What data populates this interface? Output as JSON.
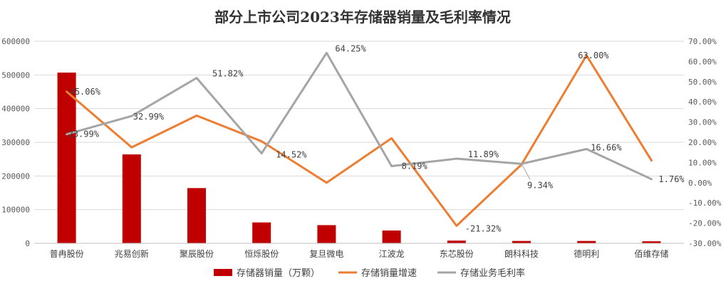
{
  "chart_data": {
    "type": "bar",
    "title": "部分上市公司2023年存储器销量及毛利率情况",
    "categories": [
      "普冉股份",
      "兆易创新",
      "聚辰股份",
      "恒烁股份",
      "复旦微电",
      "江波龙",
      "东芯股份",
      "朗科科技",
      "德明利",
      "佰维存储"
    ],
    "y_left": {
      "ticks": [
        "0",
        "100000",
        "200000",
        "300000",
        "400000",
        "500000",
        "600000"
      ],
      "ylim": [
        0,
        600000
      ]
    },
    "y_right": {
      "ticks": [
        "-30.00%",
        "-20.00%",
        "-10.00%",
        "0.00%",
        "10.00%",
        "20.00%",
        "30.00%",
        "40.00%",
        "50.00%",
        "60.00%",
        "70.00%"
      ],
      "ylim": [
        -30,
        70
      ]
    },
    "grid": true,
    "legend_position": "bottom",
    "series": [
      {
        "name": "存储器销量（万颗）",
        "type": "bar",
        "axis": "left",
        "color": "#c00000",
        "values": [
          507000,
          264000,
          164000,
          62000,
          54000,
          38000,
          8000,
          7000,
          7000,
          6000
        ]
      },
      {
        "name": "存储销量增速",
        "type": "line",
        "axis": "right",
        "color": "#ed7d31",
        "values": [
          45.06,
          17.5,
          33.2,
          20.5,
          0.0,
          22.0,
          -21.32,
          9.0,
          63.0,
          11.0
        ]
      },
      {
        "name": "存储业务毛利率",
        "type": "line",
        "axis": "right",
        "color": "#a5a5a5",
        "values": [
          23.99,
          32.99,
          51.82,
          14.52,
          64.25,
          8.19,
          11.89,
          9.34,
          16.66,
          1.76
        ]
      }
    ],
    "data_labels": [
      {
        "series": 1,
        "index": 0,
        "text": "45.06%"
      },
      {
        "series": 2,
        "index": 0,
        "text": "23.99%"
      },
      {
        "series": 2,
        "index": 1,
        "text": "32.99%"
      },
      {
        "series": 2,
        "index": 2,
        "text": "51.82%"
      },
      {
        "series": 2,
        "index": 3,
        "text": "14.52%"
      },
      {
        "series": 2,
        "index": 4,
        "text": "64.25%"
      },
      {
        "series": 2,
        "index": 5,
        "text": "8.19%"
      },
      {
        "series": 2,
        "index": 6,
        "text": "11.89%"
      },
      {
        "series": 1,
        "index": 6,
        "text": "-21.32%"
      },
      {
        "series": 2,
        "index": 7,
        "text": "9.34%"
      },
      {
        "series": 1,
        "index": 8,
        "text": "63.00%"
      },
      {
        "series": 2,
        "index": 8,
        "text": "16.66%"
      },
      {
        "series": 2,
        "index": 9,
        "text": "1.76%"
      }
    ]
  }
}
